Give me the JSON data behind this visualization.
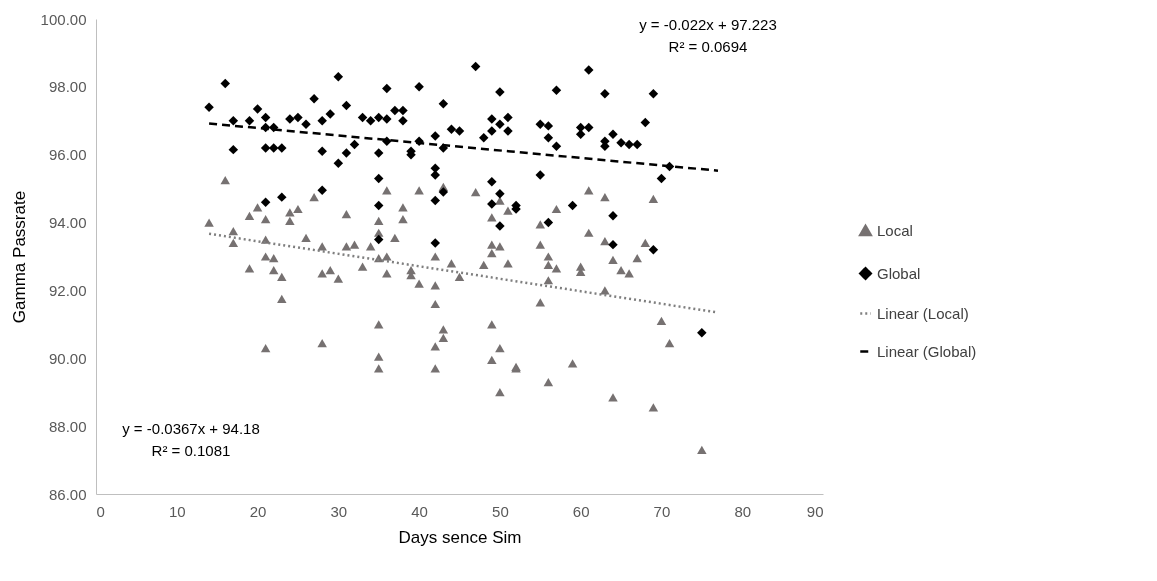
{
  "chart_data": {
    "type": "scatter",
    "xlabel": "Days sence Sim",
    "ylabel": "Gamma Passrate",
    "xlim": [
      0,
      90
    ],
    "xticks": [
      0,
      10,
      20,
      30,
      40,
      50,
      60,
      70,
      80,
      90
    ],
    "ylim": [
      86,
      100
    ],
    "yticks": [
      {
        "value": 86,
        "label": "86.00"
      },
      {
        "value": 88,
        "label": "88.00"
      },
      {
        "value": 90,
        "label": "90.00"
      },
      {
        "value": 92,
        "label": "92.00"
      },
      {
        "value": 94,
        "label": "94.00"
      },
      {
        "value": 96,
        "label": "96.00"
      },
      {
        "value": 98,
        "label": "98.00"
      },
      {
        "value": 100,
        "label": "100.00"
      }
    ],
    "grid": false,
    "legend": "right",
    "annotations": [
      "y = -0.022x + 97.223",
      "R² = 0.0694",
      "y = -0.0367x + 94.18",
      "R² = 0.1081"
    ],
    "series": [
      {
        "name": "Local",
        "marker": "triangle",
        "color": "#767171",
        "x": [
          14,
          16,
          17,
          17,
          19,
          19,
          20,
          21,
          21,
          21,
          21,
          22,
          22,
          23,
          23,
          24,
          24,
          25,
          26,
          27,
          28,
          28,
          28,
          29,
          30,
          31,
          31,
          32,
          33,
          34,
          35,
          35,
          35,
          35,
          35,
          35,
          36,
          36,
          36,
          37,
          38,
          38,
          39,
          39,
          40,
          40,
          42,
          42,
          42,
          42,
          42,
          43,
          43,
          43,
          44,
          45,
          47,
          48,
          49,
          49,
          49,
          49,
          49,
          50,
          50,
          50,
          50,
          51,
          51,
          52,
          52,
          55,
          55,
          55,
          56,
          56,
          56,
          56,
          57,
          57,
          59,
          60,
          60,
          61,
          61,
          63,
          63,
          63,
          64,
          64,
          65,
          66,
          67,
          68,
          69,
          69,
          70,
          71,
          75
        ],
        "values": [
          94.0,
          95.25,
          93.75,
          93.4,
          92.65,
          94.2,
          94.45,
          93.5,
          94.1,
          90.3,
          93.0,
          92.95,
          92.6,
          92.4,
          91.75,
          94.3,
          94.05,
          94.4,
          93.55,
          94.75,
          93.3,
          92.5,
          90.45,
          92.6,
          92.35,
          94.25,
          93.3,
          93.35,
          92.7,
          93.3,
          94.05,
          93.7,
          92.95,
          91.0,
          90.05,
          89.7,
          94.95,
          93.0,
          92.5,
          93.55,
          94.45,
          94.1,
          92.6,
          92.45,
          92.2,
          94.95,
          93.0,
          92.15,
          91.6,
          90.35,
          89.7,
          95.05,
          90.85,
          90.6,
          92.8,
          92.4,
          94.9,
          92.75,
          94.15,
          93.35,
          93.1,
          91.0,
          89.95,
          94.65,
          93.3,
          90.3,
          89.0,
          94.35,
          92.8,
          89.75,
          89.7,
          93.95,
          93.35,
          91.65,
          93.0,
          92.75,
          92.3,
          89.3,
          92.65,
          94.4,
          89.85,
          92.55,
          92.7,
          94.95,
          93.7,
          94.75,
          93.45,
          92.0,
          92.9,
          88.85,
          92.6,
          92.5,
          92.95,
          93.4,
          94.7,
          88.55,
          91.1,
          90.45,
          87.3
        ]
      },
      {
        "name": "Global",
        "marker": "diamond",
        "color": "#000000",
        "x": [
          14,
          16,
          17,
          17,
          19,
          20,
          21,
          21,
          21,
          21,
          22,
          22,
          23,
          23,
          24,
          25,
          26,
          27,
          28,
          28,
          28,
          29,
          30,
          30,
          31,
          31,
          32,
          33,
          34,
          35,
          35,
          35,
          35,
          35,
          36,
          36,
          36,
          37,
          38,
          38,
          39,
          39,
          40,
          40,
          42,
          42,
          42,
          42,
          42,
          43,
          43,
          43,
          44,
          45,
          47,
          48,
          49,
          49,
          49,
          49,
          50,
          50,
          50,
          50,
          51,
          51,
          52,
          52,
          55,
          55,
          56,
          56,
          56,
          57,
          57,
          59,
          60,
          60,
          61,
          61,
          63,
          63,
          63,
          64,
          64,
          64,
          65,
          66,
          67,
          68,
          69,
          69,
          70,
          71,
          75
        ],
        "values": [
          97.4,
          98.1,
          96.15,
          97.0,
          97.0,
          97.35,
          97.1,
          96.8,
          96.2,
          94.6,
          96.8,
          96.2,
          96.2,
          94.75,
          97.05,
          97.1,
          96.9,
          97.65,
          96.1,
          94.95,
          97.0,
          97.2,
          98.3,
          95.75,
          96.05,
          97.45,
          96.3,
          97.1,
          97.0,
          97.1,
          96.05,
          95.3,
          94.5,
          93.5,
          97.95,
          96.4,
          97.05,
          97.3,
          97.3,
          97.0,
          96.0,
          96.1,
          98.0,
          96.4,
          96.55,
          95.6,
          95.4,
          94.65,
          93.4,
          97.5,
          96.2,
          94.9,
          96.75,
          96.7,
          98.6,
          96.5,
          97.05,
          96.7,
          95.2,
          94.55,
          97.85,
          96.9,
          94.85,
          93.9,
          97.1,
          96.7,
          94.4,
          94.5,
          96.9,
          95.4,
          96.85,
          96.5,
          94.0,
          97.9,
          96.25,
          94.5,
          96.6,
          96.8,
          98.5,
          96.8,
          97.8,
          96.4,
          96.25,
          96.6,
          94.2,
          93.35,
          96.35,
          96.3,
          96.3,
          96.95,
          97.8,
          93.2,
          95.3,
          95.65,
          90.75
        ]
      },
      {
        "name": "Linear (Local)",
        "type": "line",
        "line_style": "dotted",
        "color": "#7f7f7f",
        "x": [
          14,
          77
        ],
        "values": [
          93.67,
          91.35
        ]
      },
      {
        "name": "Linear (Global)",
        "type": "line",
        "line_style": "dashed",
        "color": "#000000",
        "x": [
          14,
          77
        ],
        "values": [
          96.92,
          95.53
        ]
      }
    ]
  }
}
